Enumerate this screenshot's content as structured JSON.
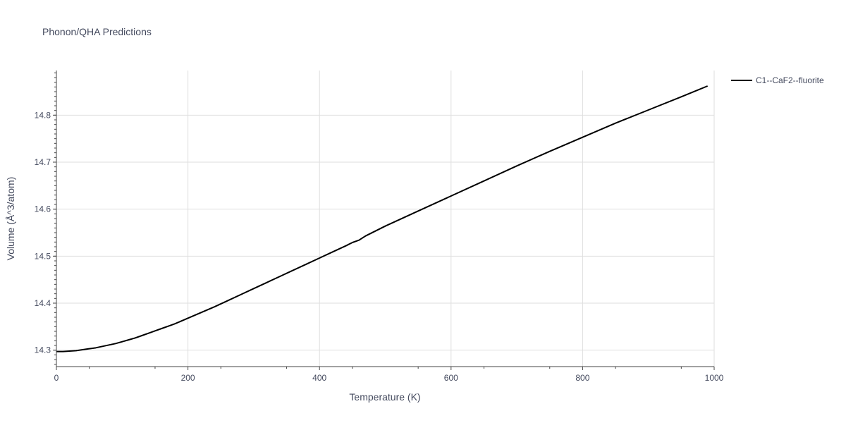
{
  "chart_data": {
    "type": "line",
    "title": "Phonon/QHA Predictions",
    "xlabel": "Temperature (K)",
    "ylabel": "Volume (Å^3/atom)",
    "xlim": [
      0,
      1000
    ],
    "ylim": [
      14.265,
      14.895
    ],
    "xticks": [
      0,
      200,
      400,
      600,
      800,
      1000
    ],
    "xtick_labels": [
      "0",
      "200",
      "400",
      "600",
      "800",
      "1000"
    ],
    "yticks": [
      14.3,
      14.4,
      14.5,
      14.6,
      14.7,
      14.8
    ],
    "ytick_labels": [
      "14.3",
      "14.4",
      "14.5",
      "14.6",
      "14.7",
      "14.8"
    ],
    "grid": true,
    "legend_position": "top-right",
    "series": [
      {
        "name": "C1--CaF2--fluorite",
        "color": "#000000",
        "x": [
          0,
          10,
          20,
          30,
          40,
          50,
          60,
          70,
          80,
          90,
          100,
          110,
          120,
          130,
          140,
          150,
          160,
          170,
          180,
          200,
          220,
          240,
          260,
          280,
          300,
          320,
          340,
          360,
          380,
          400,
          420,
          440,
          450,
          460,
          470,
          500,
          550,
          600,
          650,
          700,
          750,
          800,
          850,
          900,
          950,
          990
        ],
        "y": [
          14.297,
          14.297,
          14.298,
          14.299,
          14.301,
          14.303,
          14.305,
          14.308,
          14.311,
          14.314,
          14.318,
          14.322,
          14.326,
          14.331,
          14.336,
          14.341,
          14.346,
          14.351,
          14.356,
          14.368,
          14.38,
          14.392,
          14.405,
          14.418,
          14.431,
          14.444,
          14.457,
          14.47,
          14.483,
          14.496,
          14.509,
          14.522,
          14.529,
          14.534,
          14.543,
          14.564,
          14.596,
          14.628,
          14.66,
          14.692,
          14.723,
          14.753,
          14.783,
          14.811,
          14.839,
          14.862
        ]
      }
    ]
  }
}
